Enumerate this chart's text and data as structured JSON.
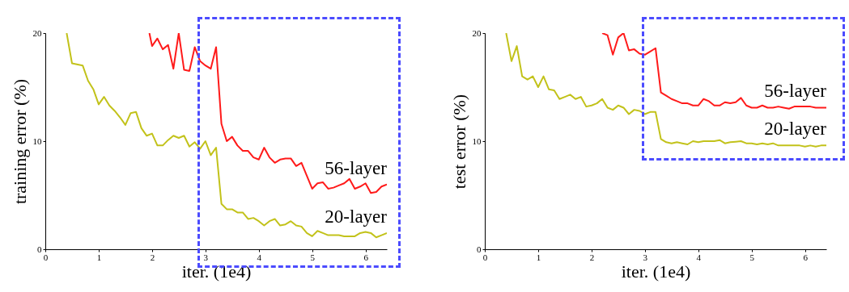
{
  "chart_data": [
    {
      "type": "line",
      "xlabel": "iter. (1e4)",
      "ylabel": "training error (%)",
      "xlim": [
        0,
        6.4
      ],
      "ylim": [
        0,
        20
      ],
      "xticks": [
        0,
        1,
        2,
        3,
        4,
        5,
        6
      ],
      "yticks": [
        0,
        10,
        20
      ],
      "grid": false,
      "legend": false,
      "series": [
        {
          "name": "56-layer",
          "color": "#ff1a1a",
          "x": [
            1.95,
            2.0,
            2.1,
            2.2,
            2.3,
            2.4,
            2.5,
            2.6,
            2.7,
            2.8,
            2.9,
            3.0,
            3.1,
            3.2,
            3.3,
            3.4,
            3.5,
            3.6,
            3.7,
            3.8,
            3.9,
            4.0,
            4.1,
            4.2,
            4.3,
            4.4,
            4.5,
            4.6,
            4.7,
            4.8,
            4.9,
            5.0,
            5.1,
            5.2,
            5.3,
            5.4,
            5.5,
            5.6,
            5.7,
            5.8,
            5.9,
            6.0,
            6.1,
            6.2,
            6.3,
            6.4
          ],
          "values": [
            20,
            18.8,
            19.5,
            18.5,
            18.9,
            16.7,
            20.0,
            16.6,
            16.5,
            18.7,
            17.4,
            17.0,
            16.7,
            18.7,
            11.6,
            10.0,
            10.4,
            9.6,
            9.1,
            9.1,
            8.5,
            8.3,
            9.4,
            8.5,
            8.0,
            8.3,
            8.4,
            8.4,
            7.7,
            8.0,
            6.8,
            5.6,
            6.1,
            6.2,
            5.6,
            5.7,
            5.9,
            6.1,
            6.5,
            5.6,
            5.8,
            6.1,
            5.2,
            5.3,
            5.8,
            6.0
          ]
        },
        {
          "name": "20-layer",
          "color": "#c2c21a",
          "x": [
            0.4,
            0.5,
            0.7,
            0.8,
            0.9,
            1.0,
            1.1,
            1.2,
            1.3,
            1.4,
            1.5,
            1.6,
            1.7,
            1.8,
            1.9,
            2.0,
            2.1,
            2.2,
            2.3,
            2.4,
            2.5,
            2.6,
            2.7,
            2.8,
            2.9,
            3.0,
            3.1,
            3.2,
            3.3,
            3.4,
            3.5,
            3.6,
            3.7,
            3.8,
            3.9,
            4.0,
            4.1,
            4.2,
            4.3,
            4.4,
            4.5,
            4.6,
            4.7,
            4.8,
            4.9,
            5.0,
            5.1,
            5.2,
            5.3,
            5.4,
            5.5,
            5.6,
            5.7,
            5.8,
            5.9,
            6.0,
            6.1,
            6.2,
            6.3,
            6.4
          ],
          "values": [
            20,
            17.2,
            17.0,
            15.6,
            14.8,
            13.4,
            14.1,
            13.3,
            12.8,
            12.2,
            11.5,
            12.6,
            12.7,
            11.2,
            10.5,
            10.7,
            9.6,
            9.6,
            10.1,
            10.5,
            10.3,
            10.5,
            9.5,
            9.9,
            9.3,
            10.0,
            8.7,
            9.4,
            4.2,
            3.7,
            3.7,
            3.4,
            3.4,
            2.8,
            2.9,
            2.6,
            2.2,
            2.6,
            2.8,
            2.2,
            2.3,
            2.6,
            2.2,
            2.1,
            1.5,
            1.2,
            1.7,
            1.5,
            1.3,
            1.3,
            1.3,
            1.2,
            1.2,
            1.2,
            1.5,
            1.6,
            1.5,
            1.1,
            1.3,
            1.5
          ]
        }
      ]
    },
    {
      "type": "line",
      "xlabel": "iter. (1e4)",
      "ylabel": "test error (%)",
      "xlim": [
        0,
        6.4
      ],
      "ylim": [
        0,
        20
      ],
      "xticks": [
        0,
        1,
        2,
        3,
        4,
        5,
        6
      ],
      "yticks": [
        0,
        10,
        20
      ],
      "grid": false,
      "legend": false,
      "series": [
        {
          "name": "56-layer",
          "color": "#ff1a1a",
          "x": [
            2.2,
            2.3,
            2.4,
            2.5,
            2.6,
            2.7,
            2.8,
            2.9,
            3.0,
            3.1,
            3.2,
            3.3,
            3.4,
            3.5,
            3.6,
            3.7,
            3.8,
            3.9,
            4.0,
            4.1,
            4.2,
            4.3,
            4.4,
            4.5,
            4.6,
            4.7,
            4.8,
            4.9,
            5.0,
            5.1,
            5.2,
            5.3,
            5.4,
            5.5,
            5.6,
            5.7,
            5.8,
            5.9,
            6.0,
            6.1,
            6.2,
            6.3,
            6.4
          ],
          "values": [
            20,
            19.8,
            18.0,
            19.6,
            20.0,
            18.4,
            18.5,
            18.1,
            18.0,
            18.3,
            18.6,
            14.5,
            14.2,
            13.9,
            13.7,
            13.5,
            13.5,
            13.3,
            13.3,
            13.9,
            13.7,
            13.3,
            13.3,
            13.6,
            13.5,
            13.6,
            14.0,
            13.3,
            13.1,
            13.1,
            13.3,
            13.1,
            13.1,
            13.2,
            13.1,
            13.0,
            13.2,
            13.2,
            13.2,
            13.2,
            13.1,
            13.1,
            13.1
          ]
        },
        {
          "name": "20-layer",
          "color": "#c2c21a",
          "x": [
            0.4,
            0.5,
            0.6,
            0.7,
            0.8,
            0.9,
            1.0,
            1.1,
            1.2,
            1.3,
            1.4,
            1.5,
            1.6,
            1.7,
            1.8,
            1.9,
            2.0,
            2.1,
            2.2,
            2.3,
            2.4,
            2.5,
            2.6,
            2.7,
            2.8,
            2.9,
            3.0,
            3.1,
            3.2,
            3.3,
            3.4,
            3.5,
            3.6,
            3.7,
            3.8,
            3.9,
            4.0,
            4.1,
            4.2,
            4.3,
            4.4,
            4.5,
            4.6,
            4.7,
            4.8,
            4.9,
            5.0,
            5.1,
            5.2,
            5.3,
            5.4,
            5.5,
            5.6,
            5.7,
            5.8,
            5.9,
            6.0,
            6.1,
            6.2,
            6.3,
            6.4
          ],
          "values": [
            20,
            17.4,
            18.8,
            16.0,
            15.7,
            16.0,
            15.0,
            16.0,
            14.8,
            14.7,
            13.9,
            14.1,
            14.3,
            13.9,
            14.1,
            13.2,
            13.3,
            13.5,
            13.9,
            13.1,
            12.9,
            13.3,
            13.1,
            12.5,
            12.9,
            12.8,
            12.5,
            12.7,
            12.7,
            10.2,
            9.9,
            9.8,
            9.9,
            9.8,
            9.7,
            10.0,
            9.9,
            10.0,
            10.0,
            10.0,
            10.1,
            9.8,
            9.9,
            9.95,
            10.0,
            9.8,
            9.8,
            9.7,
            9.8,
            9.7,
            9.8,
            9.6,
            9.6,
            9.6,
            9.6,
            9.6,
            9.5,
            9.6,
            9.5,
            9.6,
            9.6
          ]
        }
      ]
    }
  ]
}
